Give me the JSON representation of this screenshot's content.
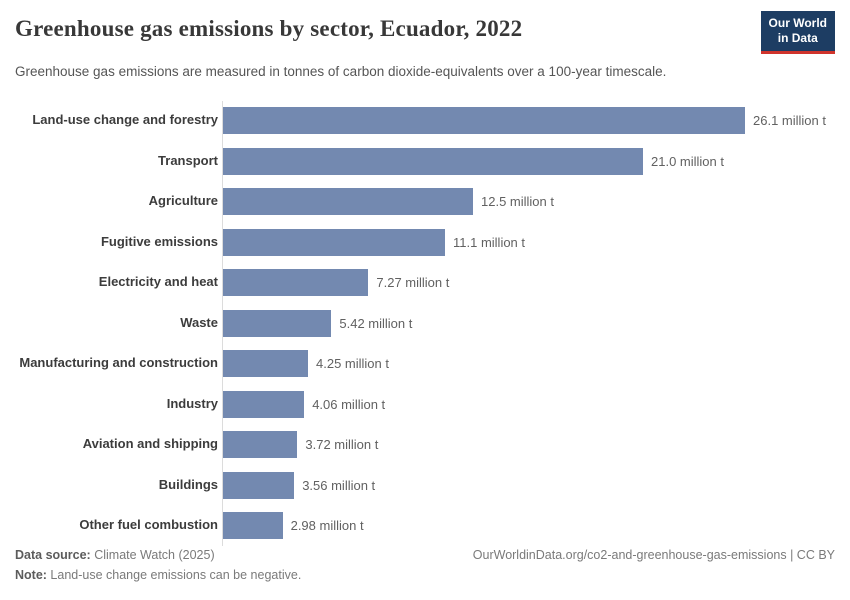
{
  "header": {
    "title": "Greenhouse gas emissions by sector, Ecuador, 2022",
    "subtitle": "Greenhouse gas emissions are measured in tonnes of carbon dioxide-equivalents over a 100-year timescale.",
    "logo": {
      "line1": "Our World",
      "line2": "in Data",
      "bg_color": "#1d3d63",
      "stripe_color": "#d0342c"
    }
  },
  "chart_data": {
    "type": "bar",
    "orientation": "horizontal",
    "title": "Greenhouse gas emissions by sector, Ecuador, 2022",
    "xlabel": "",
    "ylabel": "",
    "unit": "million t",
    "xlim": [
      0,
      30
    ],
    "grid": false,
    "legend": "none",
    "bar_color": "#7389b0",
    "axis_line_color": "#dcdcdc",
    "categories": [
      "Land-use change and forestry",
      "Transport",
      "Agriculture",
      "Fugitive emissions",
      "Electricity and heat",
      "Waste",
      "Manufacturing and construction",
      "Industry",
      "Aviation and shipping",
      "Buildings",
      "Other fuel combustion"
    ],
    "values": [
      26.1,
      21.0,
      12.5,
      11.1,
      7.27,
      5.42,
      4.25,
      4.06,
      3.72,
      3.56,
      2.98
    ],
    "value_labels": [
      "26.1 million t",
      "21.0 million t",
      "12.5 million t",
      "11.1 million t",
      "7.27 million t",
      "5.42 million t",
      "4.25 million t",
      "4.06 million t",
      "3.72 million t",
      "3.56 million t",
      "2.98 million t"
    ]
  },
  "footer": {
    "source_label": "Data source:",
    "source_text": " Climate Watch (2025)",
    "note_label": "Note:",
    "note_text": " Land-use change emissions can be negative.",
    "attribution": "OurWorldinData.org/co2-and-greenhouse-gas-emissions | CC BY"
  }
}
